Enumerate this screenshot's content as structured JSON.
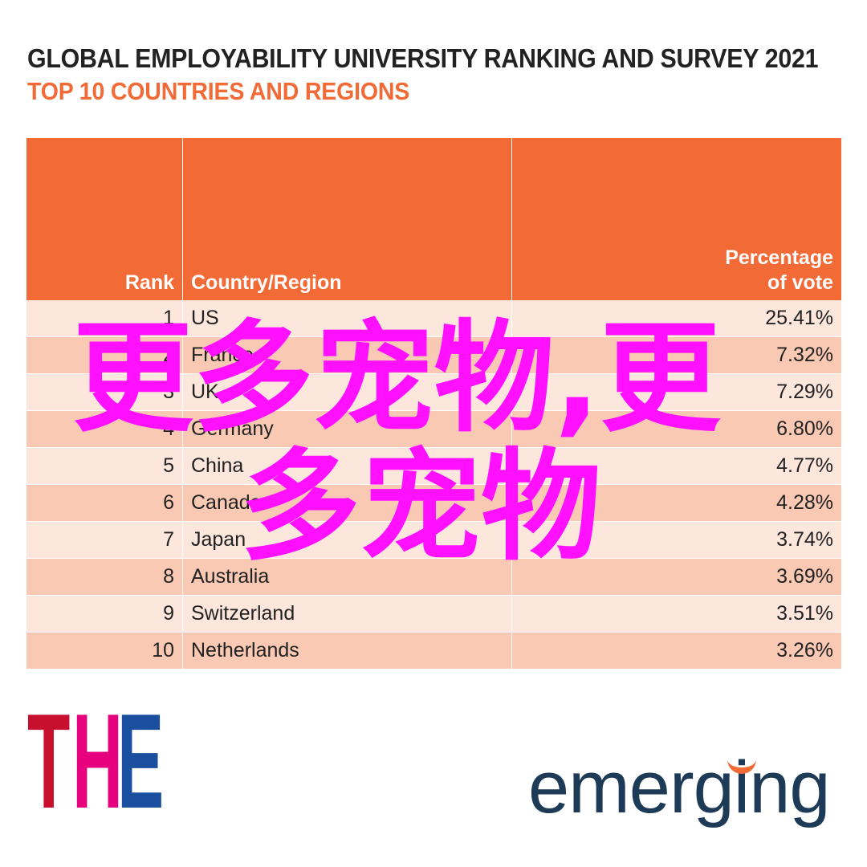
{
  "title": "GLOBAL EMPLOYABILITY UNIVERSITY RANKING AND SURVEY 2021",
  "subtitle": "TOP 10 COUNTRIES AND REGIONS",
  "colors": {
    "header": "#f26a36",
    "row_light": "#fde6dc",
    "row_dark": "#f9c9b3",
    "watermark": "#ff10ff"
  },
  "chart_data": {
    "type": "table",
    "title": "GLOBAL EMPLOYABILITY UNIVERSITY RANKING AND SURVEY 2021",
    "subtitle": "TOP 10 COUNTRIES AND REGIONS",
    "columns": [
      "Rank",
      "Country/Region",
      "Percentage of vote"
    ],
    "rows": [
      [
        "1",
        "US",
        "25.41%"
      ],
      [
        "2",
        "France",
        "7.32%"
      ],
      [
        "3",
        "UK",
        "7.29%"
      ],
      [
        "4",
        "Germany",
        "6.80%"
      ],
      [
        "5",
        "China",
        "4.77%"
      ],
      [
        "6",
        "Canada",
        "4.28%"
      ],
      [
        "7",
        "Japan",
        "3.74%"
      ],
      [
        "8",
        "Australia",
        "3.69%"
      ],
      [
        "9",
        "Switzerland",
        "3.51%"
      ],
      [
        "10",
        "Netherlands",
        "3.26%"
      ]
    ]
  },
  "header": {
    "rank": "Rank",
    "country": "Country/Region",
    "pct_line1": "Percentage",
    "pct_line2": "of vote"
  },
  "watermark": {
    "line1": "更多宠物,更",
    "line2": "多宠物"
  },
  "logos": {
    "the_letters": [
      "T",
      "H",
      "E"
    ],
    "the_colors": [
      "#c8102e",
      "#e6007e",
      "#1a4fa0"
    ],
    "emerging": "emerging"
  }
}
